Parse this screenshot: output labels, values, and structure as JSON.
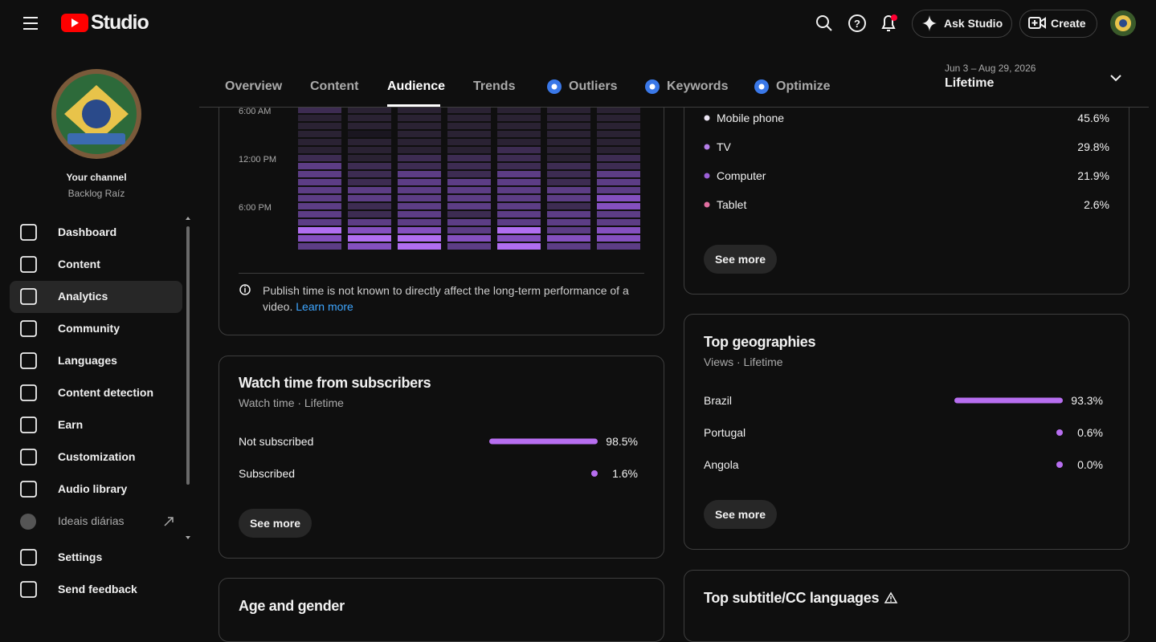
{
  "header": {
    "logo": "Studio",
    "ask": "Ask Studio",
    "create": "Create"
  },
  "sidebar": {
    "channel_label": "Your channel",
    "channel_name": "Backlog Raíz",
    "nav": [
      "Dashboard",
      "Content",
      "Analytics",
      "Community",
      "Languages",
      "Content detection",
      "Earn",
      "Customization",
      "Audio library",
      "Ideais diárias"
    ],
    "bottom": [
      "Settings",
      "Send feedback"
    ]
  },
  "tabs": [
    "Overview",
    "Content",
    "Audience",
    "Trends",
    "Outliers",
    "Keywords",
    "Optimize"
  ],
  "date_range": {
    "dates": "Jun 3 – Aug 29, 2026",
    "label": "Lifetime"
  },
  "publish_heatmap": {
    "times": [
      "6:00 AM",
      "12:00 PM",
      "6:00 PM"
    ],
    "palette": [
      "#1a1620",
      "#2a2233",
      "#3d2c52",
      "#5c3d85",
      "#8450bf",
      "#b06ef0"
    ],
    "columns": [
      [
        2,
        1,
        1,
        1,
        1,
        1,
        2,
        3,
        3,
        3,
        3,
        3,
        3,
        3,
        3,
        5,
        4,
        3
      ],
      [
        1,
        1,
        1,
        0,
        1,
        1,
        1,
        2,
        2,
        2,
        3,
        3,
        2,
        2,
        3,
        4,
        5,
        4
      ],
      [
        1,
        1,
        1,
        1,
        1,
        1,
        2,
        2,
        3,
        3,
        3,
        3,
        3,
        3,
        3,
        4,
        5,
        5
      ],
      [
        1,
        1,
        1,
        1,
        1,
        1,
        2,
        2,
        2,
        3,
        3,
        3,
        3,
        2,
        3,
        3,
        4,
        3
      ],
      [
        1,
        1,
        1,
        1,
        1,
        2,
        2,
        2,
        3,
        3,
        3,
        3,
        3,
        3,
        3,
        5,
        4,
        5
      ],
      [
        1,
        1,
        1,
        1,
        1,
        1,
        1,
        2,
        2,
        2,
        3,
        3,
        2,
        3,
        3,
        3,
        4,
        3
      ],
      [
        1,
        1,
        1,
        1,
        1,
        1,
        2,
        2,
        3,
        3,
        3,
        4,
        4,
        3,
        3,
        4,
        4,
        3
      ]
    ],
    "note": "Publish time is not known to directly affect the long-term performance of a video.",
    "link": "Learn more"
  },
  "subscribers": {
    "title": "Watch time from subscribers",
    "subtitle": "Watch time · Lifetime",
    "color": "#b76ef0",
    "rows": [
      {
        "name": "Not subscribed",
        "share": {
          "value": 98.5,
          "label": "98.5%"
        }
      },
      {
        "name": "Subscribed",
        "share": {
          "value": 1.6,
          "label": "1.6%"
        }
      }
    ],
    "button": "See more"
  },
  "age_gender": {
    "title": "Age and gender"
  },
  "devices": {
    "rows": [
      {
        "name": "Mobile phone",
        "color": "#ece6f4",
        "share": {
          "value": 45.6,
          "label": "45.6%"
        }
      },
      {
        "name": "TV",
        "color": "#b57ee8",
        "share": {
          "value": 29.8,
          "label": "29.8%"
        }
      },
      {
        "name": "Computer",
        "color": "#9b5fd6",
        "share": {
          "value": 21.9,
          "label": "21.9%"
        }
      },
      {
        "name": "Tablet",
        "color": "#e06fa0",
        "share": {
          "value": 2.6,
          "label": "2.6%"
        }
      }
    ],
    "button": "See more"
  },
  "geographies": {
    "title": "Top geographies",
    "subtitle": "Views · Lifetime",
    "color": "#b76ef0",
    "rows": [
      {
        "name": "Brazil",
        "share": {
          "value": 93.3,
          "label": "93.3%"
        }
      },
      {
        "name": "Portugal",
        "share": {
          "value": 0.6,
          "label": "0.6%"
        }
      },
      {
        "name": "Angola",
        "share": {
          "value": 0.0,
          "label": "0.0%"
        }
      }
    ],
    "button": "See more"
  },
  "subtitles": {
    "title": "Top subtitle/CC languages"
  }
}
